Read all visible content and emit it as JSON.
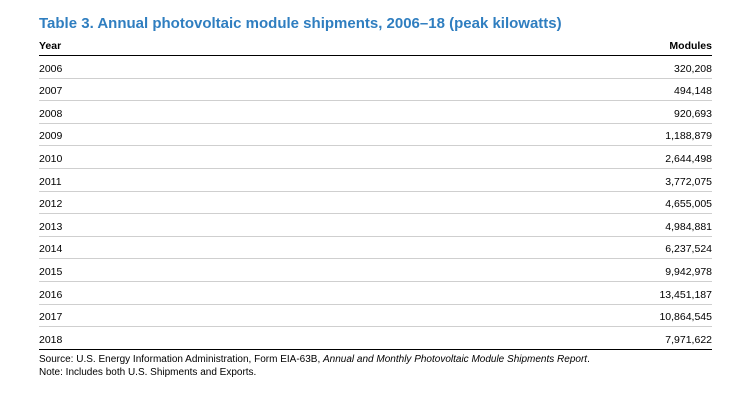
{
  "title": "Table 3. Annual photovoltaic module shipments, 2006–18 (peak kilowatts)",
  "colors": {
    "title": "#2f7ec0",
    "text": "#000000"
  },
  "columns": {
    "year": "Year",
    "modules": "Modules"
  },
  "rows": [
    {
      "year": "2006",
      "modules": "320,208"
    },
    {
      "year": "2007",
      "modules": "494,148"
    },
    {
      "year": "2008",
      "modules": "920,693"
    },
    {
      "year": "2009",
      "modules": "1,188,879"
    },
    {
      "year": "2010",
      "modules": "2,644,498"
    },
    {
      "year": "2011",
      "modules": "3,772,075"
    },
    {
      "year": "2012",
      "modules": "4,655,005"
    },
    {
      "year": "2013",
      "modules": "4,984,881"
    },
    {
      "year": "2014",
      "modules": "6,237,524"
    },
    {
      "year": "2015",
      "modules": "9,942,978"
    },
    {
      "year": "2016",
      "modules": "13,451,187"
    },
    {
      "year": "2017",
      "modules": "10,864,545"
    },
    {
      "year": "2018",
      "modules": "7,971,622"
    }
  ],
  "source": {
    "prefix": "Source: U.S. Energy Information Administration, Form EIA-63B, ",
    "italic": "Annual and Monthly Photovoltaic Module Shipments Report",
    "suffix": "."
  },
  "note": "Note: Includes both U.S. Shipments and Exports."
}
